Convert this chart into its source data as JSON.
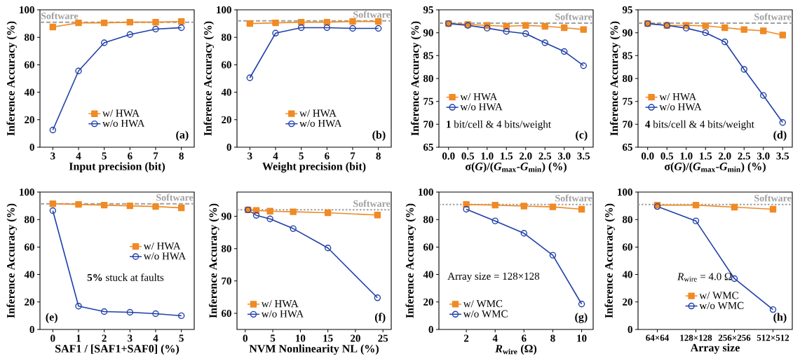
{
  "chart_data": [
    {
      "type": "line",
      "xlabel": "Input precision (bit)",
      "ylabel": "Inference Accuracy (%)",
      "x": [
        3,
        4,
        5,
        6,
        7,
        8
      ],
      "xlim": [
        2.5,
        8.5
      ],
      "xticks": [
        3,
        4,
        5,
        6,
        7,
        8
      ],
      "ylim": [
        0,
        100
      ],
      "yticks": [
        0,
        20,
        40,
        60,
        80,
        100
      ],
      "legend": "bottom",
      "series": [
        {
          "name": "w/   HWA",
          "color": "#f08a24",
          "marker": "square",
          "values": [
            87.5,
            90.5,
            90.5,
            91,
            91,
            91.5
          ]
        },
        {
          "name": "w/o HWA",
          "color": "#1f3fa8",
          "marker": "circle",
          "values": [
            12.5,
            55.5,
            76,
            82,
            86,
            87
          ]
        }
      ],
      "ref_lines": [
        {
          "axis": "y",
          "value": 91,
          "label": "Software",
          "color": "#a0a0a0",
          "line_style": "dashed"
        }
      ],
      "annotations": [
        "(a)"
      ]
    },
    {
      "type": "line",
      "xlabel": "Weight precision (bit)",
      "ylabel": "Inference Accuracy (%)",
      "x": [
        3,
        4,
        5,
        6,
        7,
        8
      ],
      "xlim": [
        2.5,
        8.5
      ],
      "xticks": [
        3,
        4,
        5,
        6,
        7,
        8
      ],
      "ylim": [
        0,
        100
      ],
      "yticks": [
        0,
        20,
        40,
        60,
        80,
        100
      ],
      "legend": "bottom",
      "series": [
        {
          "name": "w/   HWA",
          "color": "#f08a24",
          "marker": "square",
          "values": [
            90,
            90.5,
            91,
            91,
            91.5,
            91.5
          ]
        },
        {
          "name": "w/o HWA",
          "color": "#1f3fa8",
          "marker": "circle",
          "values": [
            50.5,
            83,
            87,
            87,
            86.5,
            86.5
          ]
        }
      ],
      "ref_lines": [
        {
          "axis": "y",
          "value": 92,
          "label": "Software",
          "color": "#a0a0a0",
          "line_style": "dashed"
        }
      ],
      "annotations": [
        "(b)"
      ]
    },
    {
      "type": "line",
      "xlabel": "σ(*G*)/(*G*$_{max}$-*G*$_{min}$) (%)",
      "ylabel": "Inference Accuracy (%)",
      "x": [
        0,
        0.5,
        1,
        1.5,
        2,
        2.5,
        3,
        3.5
      ],
      "xlim": [
        -0.25,
        3.75
      ],
      "xticks": [
        {
          "value": 0,
          "label": "0.0"
        },
        {
          "value": 0.5,
          "label": "0.5"
        },
        {
          "value": 1,
          "label": "1.0"
        },
        {
          "value": 1.5,
          "label": "1.5"
        },
        {
          "value": 2,
          "label": "2.0"
        },
        {
          "value": 2.5,
          "label": "2.5"
        },
        {
          "value": 3,
          "label": "3.0"
        },
        {
          "value": 3.5,
          "label": "3.5"
        }
      ],
      "ylim": [
        65,
        95
      ],
      "yticks": [
        65,
        70,
        75,
        80,
        85,
        90,
        95
      ],
      "legend": "left",
      "series": [
        {
          "name": "w/   HWA",
          "color": "#f08a24",
          "marker": "square",
          "values": [
            92,
            91.8,
            91.6,
            91.4,
            91.6,
            91.4,
            91.1,
            90.7
          ]
        },
        {
          "name": "w/o HWA",
          "color": "#1f3fa8",
          "marker": "circle",
          "values": [
            92,
            91.6,
            91,
            90.3,
            89.8,
            87.8,
            85.9,
            82.8
          ]
        }
      ],
      "ref_lines": [
        {
          "axis": "y",
          "value": 92.1,
          "label": "Software",
          "color": "#a0a0a0",
          "line_style": "dashed"
        }
      ],
      "annotations": [
        "**1** bit/cell & 4 bits/weight",
        "(c)"
      ]
    },
    {
      "type": "line",
      "xlabel": "σ(*G*)/(*G*$_{max}$-*G*$_{min}$) (%)",
      "ylabel": "Inference Accuracy (%)",
      "x": [
        0,
        0.5,
        1,
        1.5,
        2,
        2.5,
        3,
        3.5
      ],
      "xlim": [
        -0.25,
        3.75
      ],
      "xticks": [
        {
          "value": 0,
          "label": "0.0"
        },
        {
          "value": 0.5,
          "label": "0.5"
        },
        {
          "value": 1,
          "label": "1.0"
        },
        {
          "value": 1.5,
          "label": "1.5"
        },
        {
          "value": 2,
          "label": "2.0"
        },
        {
          "value": 2.5,
          "label": "2.5"
        },
        {
          "value": 3,
          "label": "3.0"
        },
        {
          "value": 3.5,
          "label": "3.5"
        }
      ],
      "ylim": [
        65,
        95
      ],
      "yticks": [
        65,
        70,
        75,
        80,
        85,
        90,
        95
      ],
      "legend": "left",
      "series": [
        {
          "name": "w/   HWA",
          "color": "#f08a24",
          "marker": "square",
          "values": [
            92,
            91.6,
            91.6,
            91.5,
            91.1,
            90.7,
            90.4,
            89.5
          ]
        },
        {
          "name": "w/o HWA",
          "color": "#1f3fa8",
          "marker": "circle",
          "values": [
            92,
            91.6,
            91,
            90,
            88,
            82,
            76.3,
            70.4
          ]
        }
      ],
      "ref_lines": [
        {
          "axis": "y",
          "value": 92.1,
          "label": "Software",
          "color": "#a0a0a0",
          "line_style": "dashed"
        }
      ],
      "annotations": [
        "**4** bits/cell & 4 bits/weight",
        "(d)"
      ]
    },
    {
      "type": "line",
      "xlabel": "SAF1 / [SAF1+SAF0] (%)",
      "ylabel": "Inference Accuracy (%)",
      "x": [
        0,
        1,
        2,
        3,
        4,
        5
      ],
      "xlim": [
        -0.5,
        5.5
      ],
      "xticks": [
        0,
        1,
        2,
        3,
        4,
        5
      ],
      "ylim": [
        0,
        100
      ],
      "yticks": [
        0,
        20,
        40,
        60,
        80,
        100
      ],
      "legend": "right",
      "series": [
        {
          "name": "w/   HWA",
          "color": "#f08a24",
          "marker": "square",
          "values": [
            91.5,
            91,
            90.5,
            90,
            89.5,
            88.5
          ]
        },
        {
          "name": "w/o HWA",
          "color": "#1f3fa8",
          "marker": "circle",
          "values": [
            86.5,
            17,
            13,
            12.5,
            11.5,
            10
          ]
        }
      ],
      "ref_lines": [
        {
          "axis": "y",
          "value": 91.5,
          "label": "Software",
          "color": "#a0a0a0",
          "line_style": "dashed"
        }
      ],
      "annotations": [
        "(e)",
        "**5%** stuck at faults"
      ]
    },
    {
      "type": "line",
      "xlabel": "NVM Nonlinearity NL (%)",
      "ylabel": "Inference Accuracy (%)",
      "x": [
        0.5,
        2,
        4.5,
        8.7,
        15,
        24
      ],
      "xlim": [
        -1.5,
        26.5
      ],
      "xticks": [
        0,
        5,
        10,
        15,
        20,
        25
      ],
      "ylim": [
        55,
        97.5
      ],
      "yticks": [
        60,
        70,
        80,
        90
      ],
      "legend": "bottom left",
      "series": [
        {
          "name": "w/   HWA",
          "color": "#f08a24",
          "marker": "square",
          "values": [
            92,
            91.8,
            91.6,
            91.4,
            91.1,
            90.4
          ]
        },
        {
          "name": "w/o HWA",
          "color": "#1f3fa8",
          "marker": "circle",
          "values": [
            92,
            90.3,
            89.2,
            86.2,
            80.2,
            64.8
          ]
        }
      ],
      "ref_lines": [
        {
          "axis": "y",
          "value": 92,
          "label": "Software",
          "color": "#a0a0a0",
          "line_style": "dotted"
        }
      ],
      "annotations": [
        "(f)"
      ]
    },
    {
      "type": "line",
      "xlabel": "*R*$_{wire}$ (Ω)",
      "ylabel": "Inference Accuracy (%)",
      "x": [
        2,
        4,
        6,
        8,
        10
      ],
      "xlim": [
        0.1,
        10.8
      ],
      "xticks": [
        2,
        4,
        6,
        8,
        10
      ],
      "ylim": [
        0,
        100
      ],
      "yticks": [
        0,
        20,
        40,
        60,
        80,
        100
      ],
      "legend": "bottom left",
      "series": [
        {
          "name": "w/  WMC",
          "color": "#f08a24",
          "marker": "square",
          "values": [
            91,
            90.5,
            89.8,
            89.2,
            87.5
          ]
        },
        {
          "name": "w/o WMC",
          "color": "#1f3fa8",
          "marker": "circle",
          "values": [
            87.5,
            79,
            70,
            54,
            18.5
          ]
        }
      ],
      "ref_lines": [
        {
          "axis": "y",
          "value": 91,
          "label": "Software",
          "color": "#a0a0a0",
          "line_style": "dotted"
        }
      ],
      "annotations": [
        "Array size = 128×128",
        "(g)"
      ]
    },
    {
      "type": "line",
      "xlabel": "Array size",
      "ylabel": "Inference Accuracy (%)",
      "categories": [
        "64×64",
        "128×128",
        "256×256",
        "512×512"
      ],
      "ylim": [
        0,
        100
      ],
      "yticks": [
        0,
        20,
        40,
        60,
        80,
        100
      ],
      "legend": "bottom",
      "series": [
        {
          "name": "w/  WMC",
          "color": "#f08a24",
          "marker": "square",
          "values": [
            90.5,
            90.5,
            89,
            87.5
          ]
        },
        {
          "name": "w/o WMC",
          "color": "#1f3fa8",
          "marker": "circle",
          "values": [
            89.5,
            79,
            37,
            14.5
          ]
        }
      ],
      "ref_lines": [
        {
          "axis": "y",
          "value": 91,
          "label": "Software",
          "color": "#a0a0a0",
          "line_style": "dotted"
        }
      ],
      "annotations": [
        "*R*$_{wire}$ = 4.0 Ω",
        "(h)"
      ]
    }
  ]
}
